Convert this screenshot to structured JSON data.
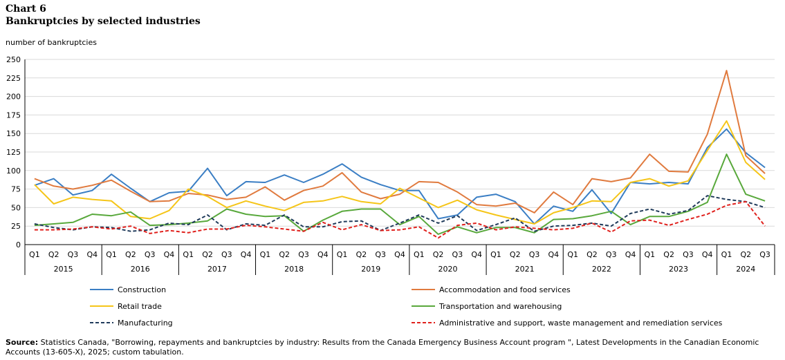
{
  "header": {
    "chart_number": "Chart 6",
    "title": "Bankruptcies by selected industries",
    "unit_label": "number of bankruptcies"
  },
  "source": {
    "label": "Source:",
    "text": "Statistics Canada, \"Borrowing, repayments and bankruptcies by industry: Results from the Canada Emergency Business Account program \", Latest Developments in the Canadian Economic Accounts (13-605-X), 2025; custom tabulation."
  },
  "chart_data": {
    "type": "line",
    "title": "Bankruptcies by selected industries",
    "ylabel": "number of bankruptcies",
    "ylim": [
      0,
      250
    ],
    "yticks": [
      0,
      25,
      50,
      75,
      100,
      125,
      150,
      175,
      200,
      225,
      250
    ],
    "grid": true,
    "legend_position": "bottom",
    "years": [
      "2015",
      "2016",
      "2017",
      "2018",
      "2019",
      "2020",
      "2021",
      "2022",
      "2023",
      "2024"
    ],
    "categories": [
      "Q1",
      "Q2",
      "Q3",
      "Q4",
      "Q1",
      "Q2",
      "Q3",
      "Q4",
      "Q1",
      "Q2",
      "Q3",
      "Q4",
      "Q1",
      "Q2",
      "Q3",
      "Q4",
      "Q1",
      "Q2",
      "Q3",
      "Q4",
      "Q1",
      "Q2",
      "Q3",
      "Q4",
      "Q1",
      "Q2",
      "Q3",
      "Q4",
      "Q1",
      "Q2",
      "Q3",
      "Q4",
      "Q1",
      "Q2",
      "Q3",
      "Q4",
      "Q1",
      "Q2",
      "Q3"
    ],
    "series": [
      {
        "name": "Construction",
        "color": "#3a7ec4",
        "dashed": false,
        "values": [
          80,
          89,
          67,
          73,
          95,
          76,
          58,
          70,
          72,
          103,
          66,
          85,
          84,
          94,
          84,
          95,
          109,
          91,
          81,
          73,
          73,
          35,
          40,
          64,
          68,
          58,
          28,
          52,
          45,
          74,
          42,
          84,
          82,
          84,
          82,
          131,
          156,
          124,
          104
        ]
      },
      {
        "name": "Accommodation and food services",
        "color": "#e07a3e",
        "dashed": false,
        "values": [
          89,
          79,
          75,
          80,
          87,
          72,
          58,
          59,
          69,
          67,
          61,
          64,
          78,
          60,
          73,
          79,
          97,
          71,
          62,
          68,
          85,
          84,
          71,
          54,
          52,
          56,
          43,
          71,
          54,
          89,
          85,
          90,
          122,
          99,
          98,
          149,
          235,
          120,
          96
        ]
      },
      {
        "name": "Retail trade",
        "color": "#f5c518",
        "dashed": false,
        "values": [
          81,
          55,
          64,
          61,
          59,
          38,
          35,
          46,
          75,
          65,
          50,
          59,
          52,
          46,
          57,
          59,
          65,
          58,
          55,
          76,
          63,
          50,
          60,
          47,
          40,
          34,
          28,
          43,
          50,
          59,
          58,
          84,
          89,
          79,
          86,
          127,
          167,
          111,
          88
        ]
      },
      {
        "name": "Transportation and warehousing",
        "color": "#58a83b",
        "dashed": false,
        "values": [
          26,
          28,
          30,
          41,
          39,
          44,
          26,
          27,
          29,
          32,
          48,
          41,
          38,
          39,
          18,
          33,
          45,
          48,
          48,
          27,
          38,
          14,
          24,
          16,
          23,
          23,
          16,
          34,
          35,
          39,
          45,
          27,
          38,
          38,
          45,
          57,
          122,
          68,
          59
        ]
      },
      {
        "name": "Manufacturing",
        "color": "#1f3a5a",
        "dashed": true,
        "values": [
          28,
          23,
          20,
          24,
          23,
          18,
          20,
          29,
          27,
          40,
          20,
          28,
          26,
          40,
          24,
          24,
          31,
          32,
          19,
          29,
          40,
          29,
          39,
          19,
          27,
          36,
          18,
          25,
          26,
          29,
          25,
          42,
          48,
          41,
          46,
          66,
          61,
          58,
          50
        ]
      },
      {
        "name": "Administrative and support, waste management and remediation services",
        "color": "#e0201c",
        "dashed": true,
        "values": [
          20,
          20,
          21,
          24,
          21,
          25,
          15,
          19,
          16,
          21,
          21,
          26,
          24,
          21,
          18,
          30,
          20,
          27,
          19,
          20,
          24,
          9,
          26,
          29,
          20,
          24,
          22,
          20,
          22,
          29,
          17,
          32,
          33,
          26,
          34,
          41,
          53,
          58,
          25
        ]
      }
    ]
  }
}
